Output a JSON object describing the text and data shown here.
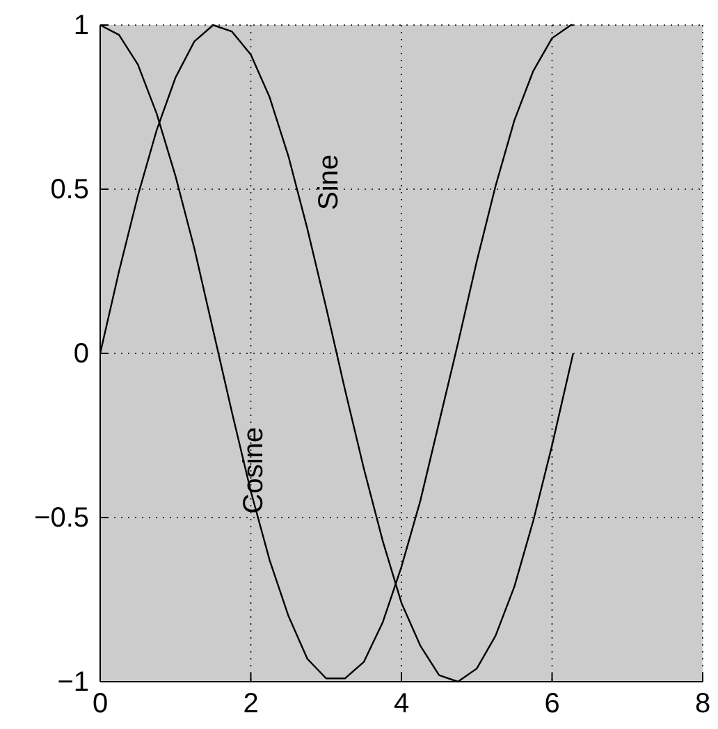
{
  "chart_data": {
    "type": "line",
    "x": [
      0,
      0.25,
      0.5,
      0.75,
      1,
      1.25,
      1.5,
      1.75,
      2,
      2.25,
      2.5,
      2.75,
      3,
      3.25,
      3.5,
      3.75,
      4,
      4.25,
      4.5,
      4.75,
      5,
      5.25,
      5.5,
      5.75,
      6,
      6.25,
      6.28
    ],
    "series": [
      {
        "name": "Sine",
        "color": "#000000",
        "values": [
          0,
          0.25,
          0.48,
          0.68,
          0.84,
          0.95,
          1.0,
          0.98,
          0.91,
          0.78,
          0.6,
          0.38,
          0.14,
          -0.11,
          -0.35,
          -0.57,
          -0.76,
          -0.89,
          -0.98,
          -1.0,
          -0.96,
          -0.86,
          -0.71,
          -0.51,
          -0.28,
          -0.03,
          0
        ]
      },
      {
        "name": "Cosine",
        "color": "#000000",
        "values": [
          1,
          0.97,
          0.88,
          0.73,
          0.54,
          0.32,
          0.07,
          -0.18,
          -0.42,
          -0.63,
          -0.8,
          -0.93,
          -0.99,
          -0.99,
          -0.94,
          -0.82,
          -0.65,
          -0.45,
          -0.21,
          0.03,
          0.28,
          0.51,
          0.71,
          0.86,
          0.96,
          1.0,
          1
        ]
      }
    ],
    "xlim": [
      0,
      8
    ],
    "xticks": [
      0,
      2,
      4,
      6,
      8
    ],
    "ylim": [
      -1,
      1
    ],
    "yticks": [
      {
        "value": -1,
        "label": "−1"
      },
      {
        "value": -0.5,
        "label": "−0.5"
      },
      0,
      0.5,
      1
    ],
    "grid": true,
    "line_style": "solid",
    "marker": "none"
  }
}
